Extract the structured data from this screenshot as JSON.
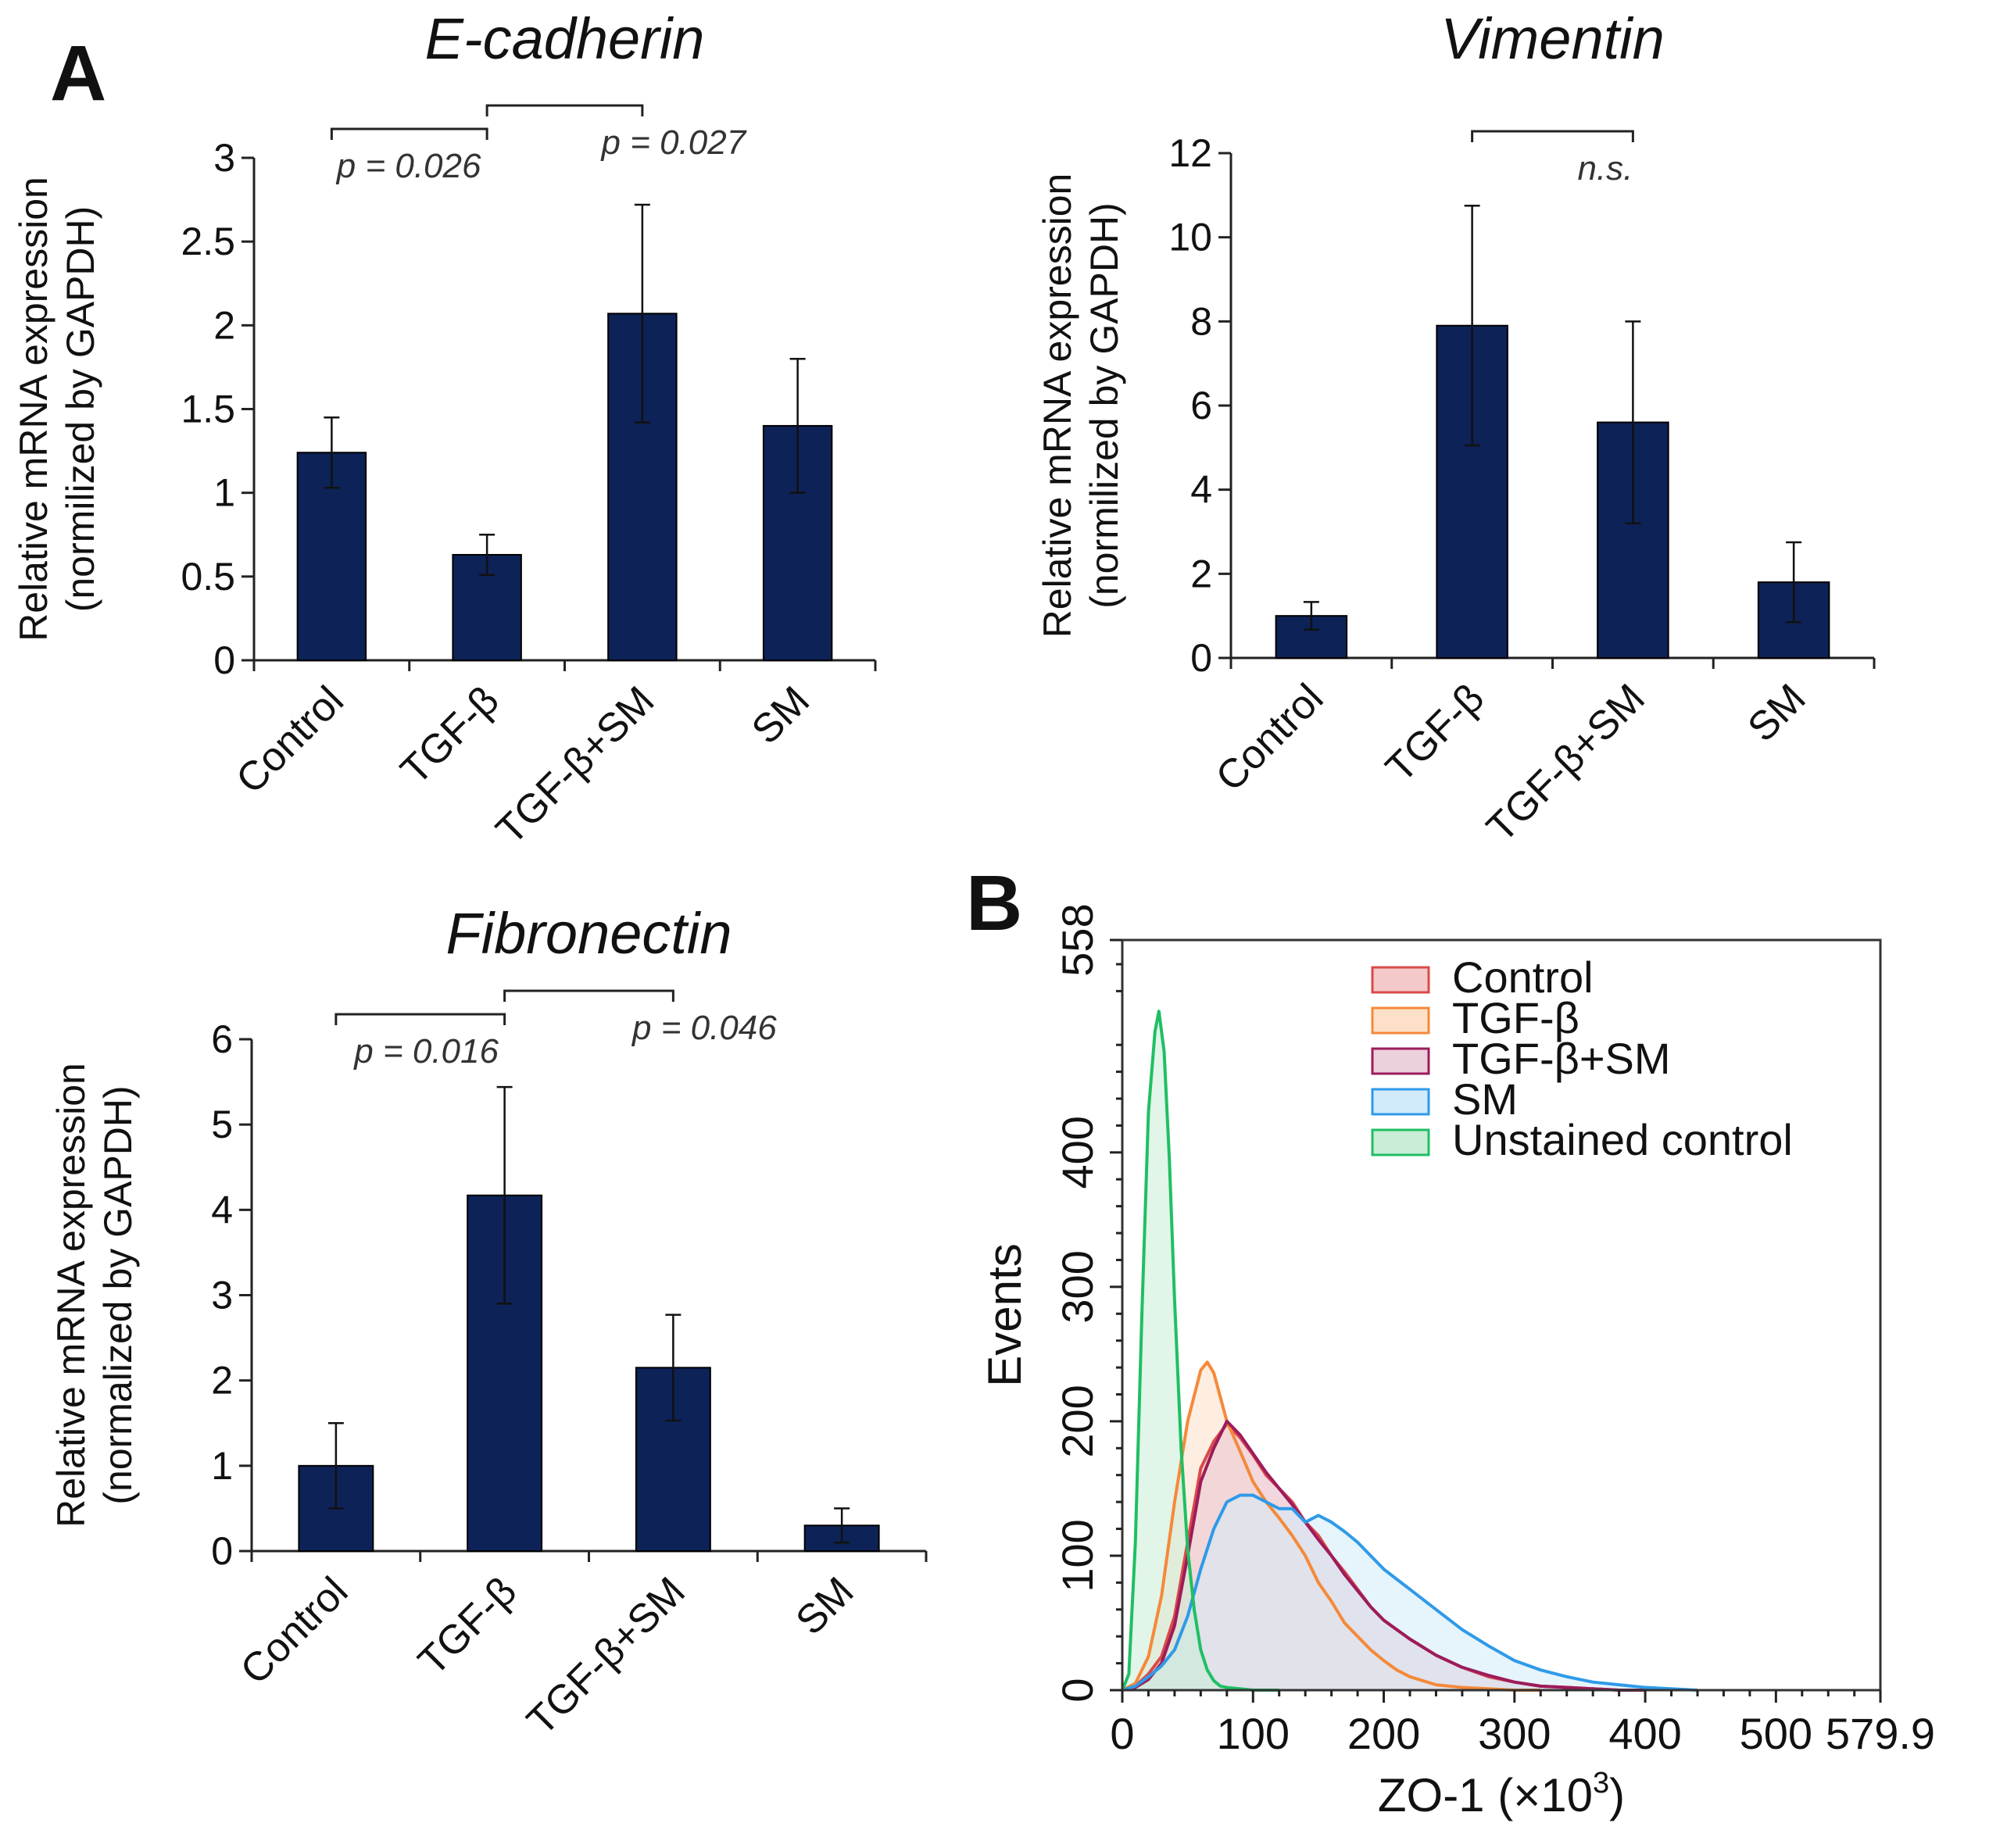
{
  "panels": {
    "a": "A",
    "b": "B"
  },
  "chart_data": [
    {
      "type": "bar",
      "id": "ecad",
      "title": "E-cadherin",
      "ylabel": [
        "Relative mRNA expression",
        "(normilized by GAPDH)"
      ],
      "categories": [
        "Control",
        "TGF-β",
        "TGF-β+SM",
        "SM"
      ],
      "values": [
        1.24,
        0.63,
        2.07,
        1.4
      ],
      "errors": [
        0.21,
        0.12,
        0.65,
        0.4
      ],
      "ylim": [
        0,
        3
      ],
      "yticks": [
        0,
        0.5,
        1,
        1.5,
        2,
        2.5,
        3
      ],
      "ytick_labels": [
        "0",
        "0.5",
        "1",
        "1.5",
        "2",
        "2.5",
        "3"
      ],
      "comparisons": [
        {
          "from": 0,
          "to": 1,
          "label": "p = 0.026"
        },
        {
          "from": 1,
          "to": 2,
          "label": "p = 0.027"
        }
      ]
    },
    {
      "type": "bar",
      "id": "vim",
      "title": "Vimentin",
      "ylabel": [
        "Relative mRNA expression",
        "(normilized by GAPDH)"
      ],
      "categories": [
        "Control",
        "TGF-β",
        "TGF-β+SM",
        "SM"
      ],
      "values": [
        1.0,
        7.9,
        5.6,
        1.8
      ],
      "errors": [
        0.33,
        2.85,
        2.4,
        0.95
      ],
      "ylim": [
        0,
        12
      ],
      "yticks": [
        0,
        2,
        4,
        6,
        8,
        10,
        12
      ],
      "ytick_labels": [
        "0",
        "2",
        "4",
        "6",
        "8",
        "10",
        "12"
      ],
      "comparisons": [
        {
          "from": 1,
          "to": 2,
          "label": "n.s."
        }
      ]
    },
    {
      "type": "bar",
      "id": "fib",
      "title": "Fibronectin",
      "ylabel": [
        "Relative mRNA expression",
        "(normalized by GAPDH)"
      ],
      "categories": [
        "Control",
        "TGF-β",
        "TGF-β+SM",
        "SM"
      ],
      "values": [
        1.0,
        4.17,
        2.15,
        0.3
      ],
      "errors": [
        0.5,
        1.27,
        0.62,
        0.2
      ],
      "ylim": [
        0,
        6
      ],
      "yticks": [
        0,
        1,
        2,
        3,
        4,
        5,
        6
      ],
      "ytick_labels": [
        "0",
        "1",
        "2",
        "3",
        "4",
        "5",
        "6"
      ],
      "comparisons": [
        {
          "from": 0,
          "to": 1,
          "label": "p = 0.016"
        },
        {
          "from": 1,
          "to": 2,
          "label": "p = 0.046"
        }
      ]
    },
    {
      "type": "area",
      "id": "hist",
      "xlabel": "ZO-1 (×10",
      "xlabel_sup": "3",
      "xlabel_end": ")",
      "ylabel": "Events",
      "xlim": [
        0,
        579.9
      ],
      "ylim": [
        0,
        558
      ],
      "xticks": [
        0,
        100,
        200,
        300,
        400,
        500,
        579.9
      ],
      "xtick_labels": [
        "0",
        "100",
        "200",
        "300",
        "400",
        "500",
        "579.9"
      ],
      "yticks": [
        0,
        100,
        200,
        300,
        400,
        558
      ],
      "ytick_labels": [
        "0",
        "100",
        "200",
        "300",
        "400",
        "558"
      ],
      "legend_position": "top-right",
      "series": [
        {
          "name": "Control",
          "color": "#d94a4a",
          "fill": "#f3c9c9",
          "x": [
            0,
            10,
            20,
            30,
            40,
            50,
            60,
            70,
            80,
            90,
            100,
            110,
            120,
            130,
            140,
            150,
            160,
            170,
            180,
            190,
            200,
            220,
            240,
            260,
            280,
            300,
            320,
            340,
            360,
            380,
            400
          ],
          "y": [
            0,
            3,
            12,
            25,
            55,
            110,
            165,
            185,
            198,
            188,
            175,
            160,
            150,
            140,
            125,
            115,
            100,
            88,
            75,
            62,
            52,
            38,
            26,
            17,
            10,
            6,
            3,
            2,
            1,
            0,
            0
          ]
        },
        {
          "name": "TGF-β",
          "color": "#f5893a",
          "fill": "#fde0c8",
          "x": [
            0,
            10,
            20,
            30,
            40,
            50,
            60,
            65,
            70,
            80,
            90,
            100,
            110,
            120,
            130,
            140,
            150,
            160,
            170,
            180,
            190,
            200,
            210,
            220,
            240,
            260,
            280,
            300,
            320
          ],
          "y": [
            0,
            5,
            25,
            70,
            140,
            200,
            238,
            244,
            236,
            200,
            178,
            155,
            140,
            128,
            115,
            100,
            80,
            66,
            50,
            40,
            30,
            22,
            15,
            10,
            4,
            2,
            1,
            0,
            0
          ]
        },
        {
          "name": "TGF-β+SM",
          "color": "#9c1c5c",
          "fill": "#ecd0dc",
          "x": [
            0,
            10,
            20,
            30,
            40,
            50,
            60,
            70,
            80,
            90,
            100,
            110,
            120,
            130,
            140,
            150,
            160,
            170,
            180,
            190,
            200,
            220,
            240,
            260,
            280,
            300,
            320,
            340,
            360,
            380,
            400
          ],
          "y": [
            0,
            2,
            8,
            20,
            48,
            100,
            155,
            180,
            200,
            190,
            176,
            162,
            150,
            138,
            125,
            112,
            100,
            86,
            74,
            62,
            52,
            38,
            26,
            17,
            11,
            6,
            3,
            2,
            1,
            0,
            0
          ]
        },
        {
          "name": "SM",
          "color": "#2f9ae8",
          "fill": "#d2ebfa",
          "x": [
            0,
            10,
            20,
            30,
            40,
            50,
            60,
            70,
            80,
            90,
            100,
            110,
            120,
            130,
            140,
            150,
            160,
            170,
            180,
            190,
            200,
            220,
            240,
            260,
            280,
            300,
            320,
            340,
            360,
            380,
            400,
            420,
            440
          ],
          "y": [
            0,
            3,
            10,
            18,
            30,
            55,
            90,
            120,
            140,
            145,
            145,
            140,
            135,
            135,
            125,
            130,
            125,
            118,
            110,
            100,
            90,
            75,
            60,
            45,
            33,
            22,
            15,
            10,
            6,
            4,
            2,
            1,
            0
          ]
        },
        {
          "name": "Unstained control",
          "color": "#1fbf63",
          "fill": "#c9edd6",
          "x": [
            0,
            5,
            10,
            15,
            20,
            25,
            28,
            32,
            36,
            40,
            45,
            50,
            55,
            60,
            65,
            70,
            75,
            80,
            90,
            100,
            110,
            120
          ],
          "y": [
            0,
            12,
            110,
            280,
            430,
            490,
            505,
            475,
            395,
            290,
            180,
            105,
            60,
            30,
            15,
            7,
            3,
            2,
            1,
            0,
            0,
            0
          ]
        }
      ]
    }
  ]
}
